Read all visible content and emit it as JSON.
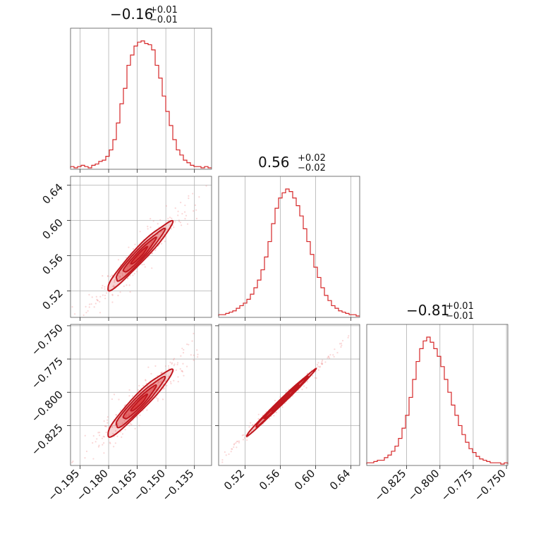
{
  "chart_data": {
    "type": "corner",
    "parameters": [
      {
        "index": 0,
        "median": "−0.16",
        "plus": "+0.01",
        "minus": "−0.01",
        "range": [
          -0.2,
          -0.126
        ],
        "ticks": [
          -0.195,
          -0.18,
          -0.165,
          -0.15,
          -0.135
        ],
        "tick_labels": [
          "−0.195",
          "−0.180",
          "−0.165",
          "−0.150",
          "−0.135"
        ]
      },
      {
        "index": 1,
        "median": "0.56",
        "plus": "+0.02",
        "minus": "−0.02",
        "range": [
          0.49,
          0.65
        ],
        "ticks": [
          0.52,
          0.56,
          0.6,
          0.64
        ],
        "tick_labels": [
          "0.52",
          "0.56",
          "0.60",
          "0.64"
        ]
      },
      {
        "index": 2,
        "median": "−0.81",
        "plus": "+0.01",
        "minus": "−0.01",
        "range": [
          -0.855,
          -0.749
        ],
        "ticks": [
          -0.825,
          -0.8,
          -0.775,
          -0.75
        ],
        "tick_labels": [
          "−0.825",
          "−0.800",
          "−0.775",
          "−0.750"
        ]
      }
    ],
    "histograms": [
      {
        "param": 0,
        "counts": [
          1,
          0,
          1,
          2,
          1,
          0,
          2,
          3,
          5,
          6,
          9,
          14,
          22,
          35,
          50,
          62,
          80,
          88,
          95,
          98,
          99,
          97,
          96,
          92,
          80,
          70,
          56,
          44,
          33,
          22,
          14,
          10,
          6,
          4,
          2,
          1,
          1,
          0,
          1,
          0
        ]
      },
      {
        "param": 1,
        "counts": [
          1,
          1,
          2,
          3,
          4,
          6,
          8,
          10,
          13,
          17,
          22,
          28,
          36,
          46,
          58,
          72,
          84,
          92,
          96,
          99,
          97,
          92,
          86,
          78,
          68,
          58,
          48,
          38,
          30,
          22,
          16,
          12,
          8,
          6,
          4,
          3,
          2,
          1,
          1,
          0
        ]
      },
      {
        "param": 2,
        "counts": [
          1,
          1,
          2,
          3,
          3,
          5,
          7,
          10,
          14,
          20,
          28,
          38,
          52,
          66,
          80,
          90,
          96,
          99,
          95,
          90,
          84,
          76,
          66,
          56,
          46,
          38,
          30,
          23,
          17,
          12,
          9,
          6,
          4,
          3,
          2,
          1,
          1,
          1,
          0,
          1
        ]
      }
    ],
    "pairs": [
      {
        "x_param": 0,
        "y_param": 1
      },
      {
        "x_param": 0,
        "y_param": 2
      },
      {
        "x_param": 1,
        "y_param": 2
      }
    ],
    "correlation": {
      "0-1": 0.96,
      "0-2": 0.95,
      "1-2": 0.995
    },
    "sigma": [
      0.0085,
      0.0195,
      0.0125
    ],
    "center": [
      -0.164,
      0.56,
      -0.808
    ],
    "contour_levels_sigma": [
      0.5,
      1.0,
      1.5,
      2.0
    ],
    "colors": {
      "main": "#d62728",
      "scatter": "#f28b8b",
      "grid": "#b0b0b0",
      "frame": "#555555"
    }
  }
}
